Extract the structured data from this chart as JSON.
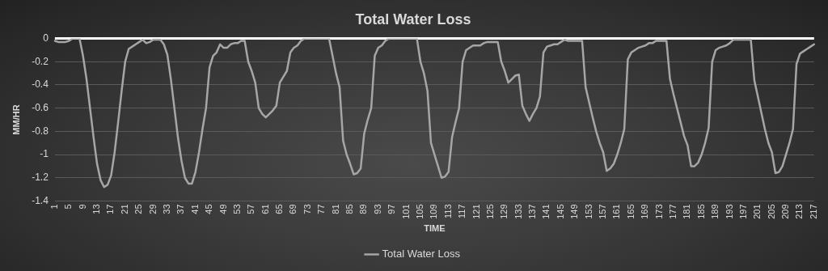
{
  "chart_data": {
    "type": "line",
    "title": "Total Water Loss",
    "xlabel": "TIME",
    "ylabel": "MM/HR",
    "categories": [
      "1",
      null,
      null,
      null,
      "5",
      null,
      null,
      null,
      "9",
      null,
      null,
      null,
      "13",
      null,
      null,
      null,
      "17",
      null,
      null,
      null,
      "21",
      null,
      null,
      null,
      "25",
      null,
      null,
      null,
      "29",
      null,
      null,
      null,
      "33",
      null,
      null,
      null,
      "37",
      null,
      null,
      null,
      "41",
      null,
      null,
      null,
      "45",
      null,
      null,
      null,
      "49",
      null,
      null,
      null,
      "53",
      null,
      null,
      null,
      "57",
      null,
      null,
      null,
      "61",
      null,
      null,
      null,
      "65",
      null,
      null,
      null,
      "69",
      null,
      null,
      null,
      "73",
      null,
      null,
      null,
      "77",
      null,
      null,
      null,
      "81",
      null,
      null,
      null,
      "85",
      null,
      null,
      null,
      "89",
      null,
      null,
      null,
      "93",
      null,
      null,
      null,
      "97",
      null,
      null,
      null,
      "101",
      null,
      null,
      null,
      "105",
      null,
      null,
      null,
      "109",
      null,
      null,
      null,
      "113",
      null,
      null,
      null,
      "117",
      null,
      null,
      null,
      "121",
      null,
      null,
      null,
      "125",
      null,
      null,
      null,
      "129",
      null,
      null,
      null,
      "133",
      null,
      null,
      null,
      "137",
      null,
      null,
      null,
      "141",
      null,
      null,
      null,
      "145",
      null,
      null,
      null,
      "149",
      null,
      null,
      null,
      "153",
      null,
      null,
      null,
      "157",
      null,
      null,
      null,
      "161",
      null,
      null,
      null,
      "165",
      null,
      null,
      null,
      "169",
      null,
      null,
      null,
      "173",
      null,
      null,
      null,
      "177",
      null,
      null,
      null,
      "181",
      null,
      null,
      null,
      "185",
      null,
      null,
      null,
      "189",
      null,
      null,
      null,
      "193",
      null,
      null,
      null,
      "197",
      null,
      null,
      null,
      "201",
      null,
      null,
      null,
      "205",
      null,
      null,
      null,
      "209",
      null,
      null,
      null,
      "213",
      null,
      null,
      null,
      "217"
    ],
    "series": [
      {
        "name": "Total Water Loss",
        "color": "#a6a6a6",
        "values": [
          -0.02,
          -0.03,
          -0.03,
          -0.03,
          -0.02,
          0,
          0,
          0,
          -0.15,
          -0.35,
          -0.6,
          -0.85,
          -1.08,
          -1.22,
          -1.28,
          -1.26,
          -1.18,
          -0.98,
          -0.72,
          -0.45,
          -0.2,
          -0.09,
          -0.07,
          -0.05,
          -0.03,
          -0.01,
          -0.04,
          -0.03,
          -0.01,
          -0.01,
          -0.01,
          -0.05,
          -0.14,
          -0.35,
          -0.6,
          -0.85,
          -1.05,
          -1.2,
          -1.25,
          -1.25,
          -1.15,
          -0.98,
          -0.78,
          -0.6,
          -0.25,
          -0.15,
          -0.12,
          -0.05,
          -0.08,
          -0.08,
          -0.05,
          -0.04,
          -0.04,
          -0.02,
          -0.02,
          -0.2,
          -0.28,
          -0.38,
          -0.6,
          -0.65,
          -0.68,
          -0.65,
          -0.62,
          -0.58,
          -0.38,
          -0.33,
          -0.28,
          -0.12,
          -0.08,
          -0.06,
          -0.02,
          0,
          0,
          0,
          0,
          0,
          0,
          0,
          0,
          -0.15,
          -0.3,
          -0.42,
          -0.88,
          -1.0,
          -1.08,
          -1.17,
          -1.16,
          -1.12,
          -0.82,
          -0.7,
          -0.6,
          -0.15,
          -0.08,
          -0.06,
          -0.02,
          0,
          0,
          0,
          0,
          0,
          0,
          0,
          0,
          0,
          -0.2,
          -0.3,
          -0.45,
          -0.9,
          -1.0,
          -1.1,
          -1.2,
          -1.19,
          -1.15,
          -0.85,
          -0.72,
          -0.6,
          -0.2,
          -0.1,
          -0.08,
          -0.06,
          -0.06,
          -0.06,
          -0.04,
          -0.03,
          -0.03,
          -0.03,
          -0.03,
          -0.2,
          -0.28,
          -0.38,
          -0.35,
          -0.32,
          -0.31,
          -0.58,
          -0.65,
          -0.71,
          -0.65,
          -0.6,
          -0.5,
          -0.12,
          -0.07,
          -0.06,
          -0.05,
          -0.05,
          -0.03,
          -0.01,
          -0.02,
          -0.02,
          -0.02,
          -0.02,
          -0.02,
          -0.42,
          -0.55,
          -0.68,
          -0.8,
          -0.9,
          -0.98,
          -1.14,
          -1.12,
          -1.08,
          -1.0,
          -0.9,
          -0.78,
          -0.18,
          -0.12,
          -0.1,
          -0.08,
          -0.07,
          -0.06,
          -0.04,
          -0.04,
          -0.02,
          -0.02,
          -0.02,
          -0.02,
          -0.35,
          -0.48,
          -0.6,
          -0.72,
          -0.84,
          -0.92,
          -1.1,
          -1.1,
          -1.07,
          -1.0,
          -0.9,
          -0.77,
          -0.2,
          -0.1,
          -0.08,
          -0.07,
          -0.06,
          -0.04,
          -0.01,
          -0.01,
          -0.01,
          -0.01,
          -0.01,
          -0.01,
          -0.36,
          -0.5,
          -0.64,
          -0.78,
          -0.9,
          -0.98,
          -1.16,
          -1.15,
          -1.1,
          -1.0,
          -0.9,
          -0.78,
          -0.22,
          -0.13,
          -0.11,
          -0.09,
          -0.07,
          -0.05
        ]
      }
    ],
    "ylim": [
      -1.4,
      0
    ],
    "yticks": [
      0,
      -0.2,
      -0.4,
      -0.6,
      -0.8,
      -1,
      -1.2,
      -1.4
    ],
    "ref_lines": [
      {
        "axis": "y",
        "value": 0,
        "color": "#ffffff"
      }
    ],
    "grid": "y",
    "legend": "bottom",
    "marker": "none",
    "line_style": "solid"
  }
}
